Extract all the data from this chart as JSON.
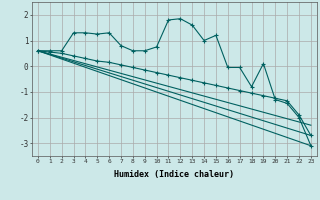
{
  "bg_color": "#cce8e8",
  "grid_color": "#aaaaaa",
  "line_color": "#006060",
  "x_label": "Humidex (Indice chaleur)",
  "x_ticks": [
    0,
    1,
    2,
    3,
    4,
    5,
    6,
    7,
    8,
    9,
    10,
    11,
    12,
    13,
    14,
    15,
    16,
    17,
    18,
    19,
    20,
    21,
    22,
    23
  ],
  "ylim": [
    -3.5,
    2.5
  ],
  "yticks": [
    -3,
    -2,
    -1,
    0,
    1,
    2
  ],
  "series1_x": [
    0,
    1,
    2,
    3,
    4,
    5,
    6,
    7,
    8,
    9,
    10,
    11,
    12,
    13,
    14,
    15,
    16,
    17,
    18,
    19,
    20,
    21,
    22,
    23
  ],
  "series1_y": [
    0.6,
    0.6,
    0.6,
    1.3,
    1.3,
    1.25,
    1.3,
    0.8,
    0.6,
    0.6,
    0.75,
    1.8,
    1.85,
    1.6,
    1.0,
    1.2,
    -0.05,
    -0.05,
    -0.8,
    0.1,
    -1.3,
    -1.45,
    -2.0,
    -3.1
  ],
  "series2_x": [
    0,
    1,
    2,
    3,
    4,
    5,
    6,
    7,
    8,
    9,
    10,
    11,
    12,
    13,
    14,
    15,
    16,
    17,
    18,
    19,
    20,
    21,
    22,
    23
  ],
  "series2_y": [
    0.6,
    0.55,
    0.5,
    0.4,
    0.3,
    0.2,
    0.15,
    0.05,
    -0.05,
    -0.15,
    -0.25,
    -0.35,
    -0.45,
    -0.55,
    -0.65,
    -0.75,
    -0.85,
    -0.95,
    -1.05,
    -1.15,
    -1.25,
    -1.35,
    -1.9,
    -2.7
  ],
  "series3_x": [
    0,
    23
  ],
  "series3_y": [
    0.6,
    -2.7
  ],
  "series4_x": [
    0,
    23
  ],
  "series4_y": [
    0.6,
    -3.1
  ],
  "series5_x": [
    0,
    23
  ],
  "series5_y": [
    0.6,
    -2.3
  ]
}
